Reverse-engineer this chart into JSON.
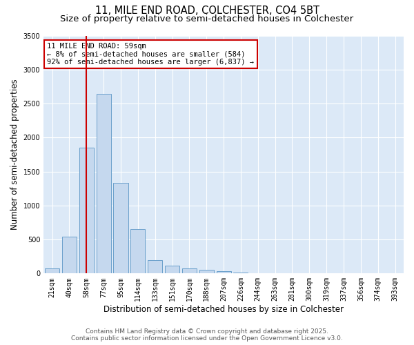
{
  "title_line1": "11, MILE END ROAD, COLCHESTER, CO4 5BT",
  "title_line2": "Size of property relative to semi-detached houses in Colchester",
  "xlabel": "Distribution of semi-detached houses by size in Colchester",
  "ylabel": "Number of semi-detached properties",
  "categories": [
    "21sqm",
    "40sqm",
    "58sqm",
    "77sqm",
    "95sqm",
    "114sqm",
    "133sqm",
    "151sqm",
    "170sqm",
    "188sqm",
    "207sqm",
    "226sqm",
    "244sqm",
    "263sqm",
    "281sqm",
    "300sqm",
    "319sqm",
    "337sqm",
    "356sqm",
    "374sqm",
    "393sqm"
  ],
  "values": [
    70,
    540,
    1850,
    2640,
    1330,
    650,
    200,
    110,
    70,
    50,
    30,
    10,
    5,
    2,
    1,
    0,
    0,
    0,
    0,
    0,
    0
  ],
  "bar_color": "#c5d8ee",
  "bar_edge_color": "#6aa0cb",
  "vline_index": 2,
  "annotation_text_line1": "11 MILE END ROAD: 59sqm",
  "annotation_text_line2": "← 8% of semi-detached houses are smaller (584)",
  "annotation_text_line3": "92% of semi-detached houses are larger (6,837) →",
  "vline_color": "#cc0000",
  "annotation_box_color": "#cc0000",
  "ylim": [
    0,
    3500
  ],
  "yticks": [
    0,
    500,
    1000,
    1500,
    2000,
    2500,
    3000,
    3500
  ],
  "background_color": "#dce9f7",
  "grid_color": "white",
  "footer_line1": "Contains HM Land Registry data © Crown copyright and database right 2025.",
  "footer_line2": "Contains public sector information licensed under the Open Government Licence v3.0.",
  "title_fontsize": 10.5,
  "subtitle_fontsize": 9.5,
  "axis_label_fontsize": 8.5,
  "tick_fontsize": 7,
  "annotation_fontsize": 7.5,
  "footer_fontsize": 6.5
}
